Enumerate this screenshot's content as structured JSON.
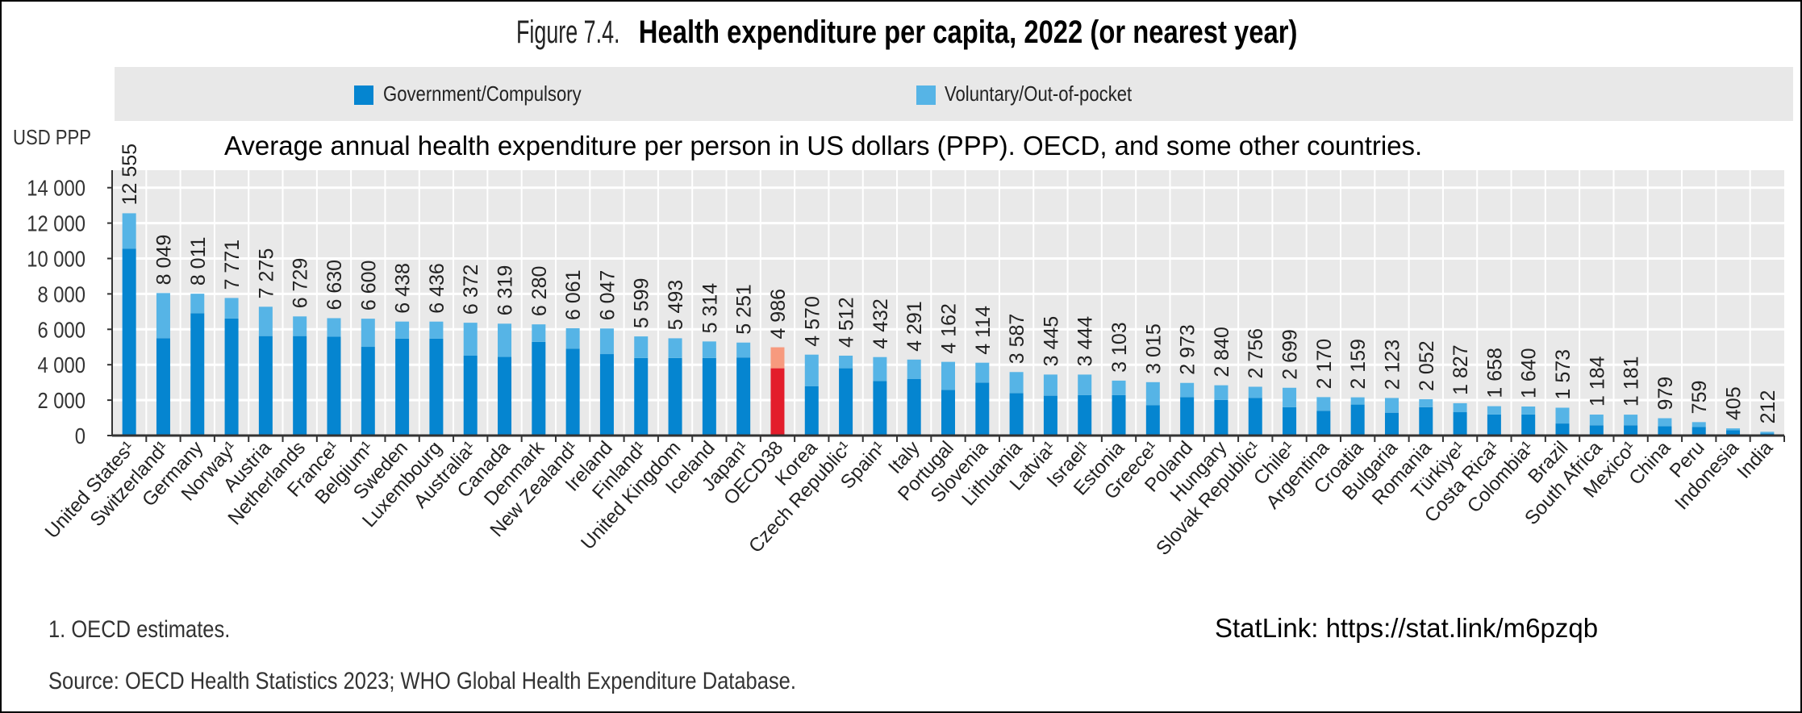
{
  "title": {
    "prefix": "Figure 7.4.",
    "main": "Health expenditure per capita, 2022 (or nearest year)"
  },
  "subtitle": "Average annual health expenditure per person in US dollars (PPP). OECD, and some other countries.",
  "footnote": "1. OECD estimates.",
  "source": "Source: OECD Health Statistics 2023; WHO Global Health Expenditure Database.",
  "statlink": "StatLink: https://stat.link/m6pzqb",
  "colors": {
    "government": "#0585d0",
    "voluntary": "#56b4e6",
    "highlight_government": "#e31d2b",
    "highlight_voluntary": "#f79a7e",
    "plot_bg": "#e9e9e9"
  },
  "chart_data": {
    "type": "bar",
    "stacked": true,
    "ylabel": "USD PPP",
    "ylim": [
      0,
      14000
    ],
    "yticks": [
      0,
      2000,
      4000,
      6000,
      8000,
      10000,
      12000,
      14000
    ],
    "ytick_labels": [
      "0",
      "2 000",
      "4 000",
      "6 000",
      "8 000",
      "10 000",
      "12 000",
      "14 000"
    ],
    "grid": true,
    "legend_placement": "top",
    "highlight": "OECD38",
    "categories": [
      "United States¹",
      "Switzerland¹",
      "Germany",
      "Norway¹",
      "Austria",
      "Netherlands",
      "France¹",
      "Belgium¹",
      "Sweden",
      "Luxembourg",
      "Australia¹",
      "Canada",
      "Denmark",
      "New Zealand¹",
      "Ireland",
      "Finland¹",
      "United Kingdom",
      "Iceland",
      "Japan¹",
      "OECD38",
      "Korea",
      "Czech Republic¹",
      "Spain¹",
      "Italy",
      "Portugal",
      "Slovenia",
      "Lithuania",
      "Latvia¹",
      "Israel¹",
      "Estonia",
      "Greece¹",
      "Poland",
      "Hungary",
      "Slovak Republic¹",
      "Chile¹",
      "Argentina",
      "Croatia",
      "Bulgaria",
      "Romania",
      "Türkiye¹",
      "Costa Rica¹",
      "Colombia¹",
      "Brazil",
      "South Africa",
      "Mexico¹",
      "China",
      "Peru",
      "Indonesia",
      "India"
    ],
    "totals": [
      12555,
      8049,
      8011,
      7771,
      7275,
      6729,
      6630,
      6600,
      6438,
      6436,
      6372,
      6319,
      6280,
      6061,
      6047,
      5599,
      5493,
      5314,
      5251,
      4986,
      4570,
      4512,
      4432,
      4291,
      4162,
      4114,
      3587,
      3445,
      3444,
      3103,
      3015,
      2973,
      2840,
      2756,
      2699,
      2170,
      2159,
      2123,
      2052,
      1827,
      1658,
      1640,
      1573,
      1184,
      1181,
      979,
      759,
      405,
      212
    ],
    "total_labels": [
      "12 555",
      "8 049",
      "8 011",
      "7 771",
      "7 275",
      "6 729",
      "6 630",
      "6 600",
      "6 438",
      "6 436",
      "6 372",
      "6 319",
      "6 280",
      "6 061",
      "6 047",
      "5 599",
      "5 493",
      "5 314",
      "5 251",
      "4 986",
      "4 570",
      "4 512",
      "4 432",
      "4 291",
      "4 162",
      "4 114",
      "3 587",
      "3 445",
      "3 444",
      "3 103",
      "3 015",
      "2 973",
      "2 840",
      "2 756",
      "2 699",
      "2 170",
      "2 159",
      "2 123",
      "2 052",
      "1 827",
      "1 658",
      "1 640",
      "1 573",
      "1 184",
      "1 181",
      "979",
      "759",
      "405",
      "212"
    ],
    "series": [
      {
        "name": "Government/Compulsory",
        "values": [
          10560,
          5500,
          6910,
          6610,
          5620,
          5620,
          5580,
          5010,
          5470,
          5470,
          4510,
          4440,
          5290,
          4910,
          4600,
          4380,
          4380,
          4380,
          4410,
          3800,
          2780,
          3800,
          3080,
          3190,
          2580,
          2990,
          2400,
          2250,
          2280,
          2280,
          1720,
          2170,
          2010,
          2130,
          1600,
          1400,
          1750,
          1290,
          1600,
          1320,
          1190,
          1190,
          680,
          580,
          580,
          530,
          490,
          300,
          120
        ]
      },
      {
        "name": "Voluntary/Out-of-pocket",
        "values": [
          1995,
          2549,
          1101,
          1161,
          1655,
          1109,
          1050,
          1590,
          968,
          966,
          1862,
          1879,
          990,
          1151,
          1447,
          1219,
          1113,
          934,
          841,
          1186,
          1790,
          712,
          1352,
          1101,
          1582,
          1124,
          1187,
          1195,
          1164,
          823,
          1295,
          803,
          830,
          626,
          1099,
          770,
          409,
          833,
          452,
          507,
          468,
          450,
          893,
          604,
          601,
          449,
          269,
          105,
          92
        ]
      }
    ]
  }
}
